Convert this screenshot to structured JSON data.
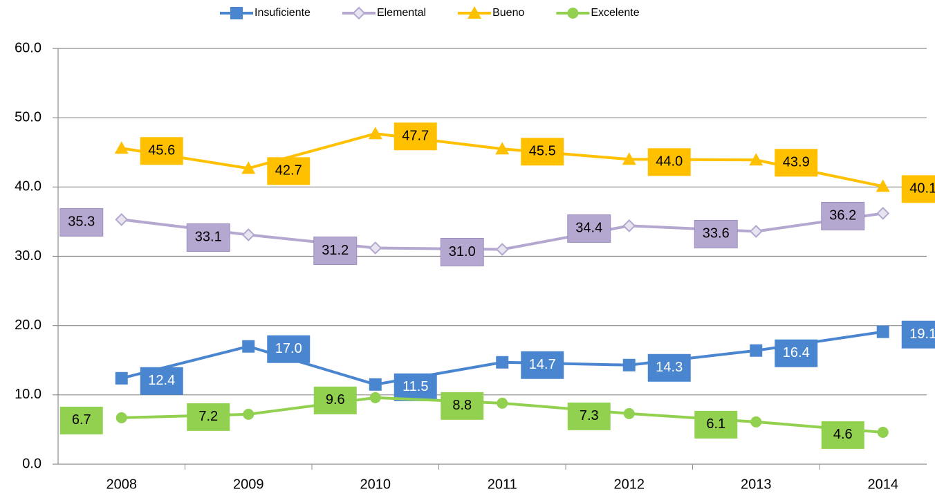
{
  "chart_data": {
    "type": "line",
    "categories": [
      "2008",
      "2009",
      "2010",
      "2011",
      "2012",
      "2013",
      "2014"
    ],
    "series": [
      {
        "name": "Insuficiente",
        "color": "#4a86d0",
        "marker": "square",
        "label_color": "#ffffff",
        "values": [
          12.4,
          17.0,
          11.5,
          14.7,
          14.3,
          16.4,
          19.1
        ],
        "value_labels": [
          "12.4",
          "17.0",
          "11.5",
          "14.7",
          "14.3",
          "16.4",
          "19.1"
        ]
      },
      {
        "name": "Elemental",
        "color": "#b4a7d0",
        "marker": "diamond",
        "label_color": "#000000",
        "values": [
          35.3,
          33.1,
          31.2,
          31.0,
          34.4,
          33.6,
          36.2
        ],
        "value_labels": [
          "35.3",
          "33.1",
          "31.2",
          "31.0",
          "34.4",
          "33.6",
          "36.2"
        ]
      },
      {
        "name": "Bueno",
        "color": "#ffc000",
        "marker": "triangle",
        "label_color": "#000000",
        "values": [
          45.6,
          42.7,
          47.7,
          45.5,
          44.0,
          43.9,
          40.1
        ],
        "value_labels": [
          "45.6",
          "42.7",
          "47.7",
          "45.5",
          "44.0",
          "43.9",
          "40.1"
        ]
      },
      {
        "name": "Excelente",
        "color": "#92d050",
        "marker": "circle",
        "label_color": "#000000",
        "values": [
          6.7,
          7.2,
          9.6,
          8.8,
          7.3,
          6.1,
          4.6
        ],
        "value_labels": [
          "6.7",
          "7.2",
          "9.6",
          "8.8",
          "7.3",
          "6.1",
          "4.6"
        ]
      }
    ],
    "ylim": [
      0,
      60
    ],
    "yticks": [
      {
        "value": 0,
        "label": "0.0"
      },
      {
        "value": 10,
        "label": "10.0"
      },
      {
        "value": 20,
        "label": "20.0"
      },
      {
        "value": 30,
        "label": "30.0"
      },
      {
        "value": 40,
        "label": "40.0"
      },
      {
        "value": 50,
        "label": "50.0"
      },
      {
        "value": 60,
        "label": "60.0"
      }
    ],
    "grid": true,
    "legend": "top"
  }
}
